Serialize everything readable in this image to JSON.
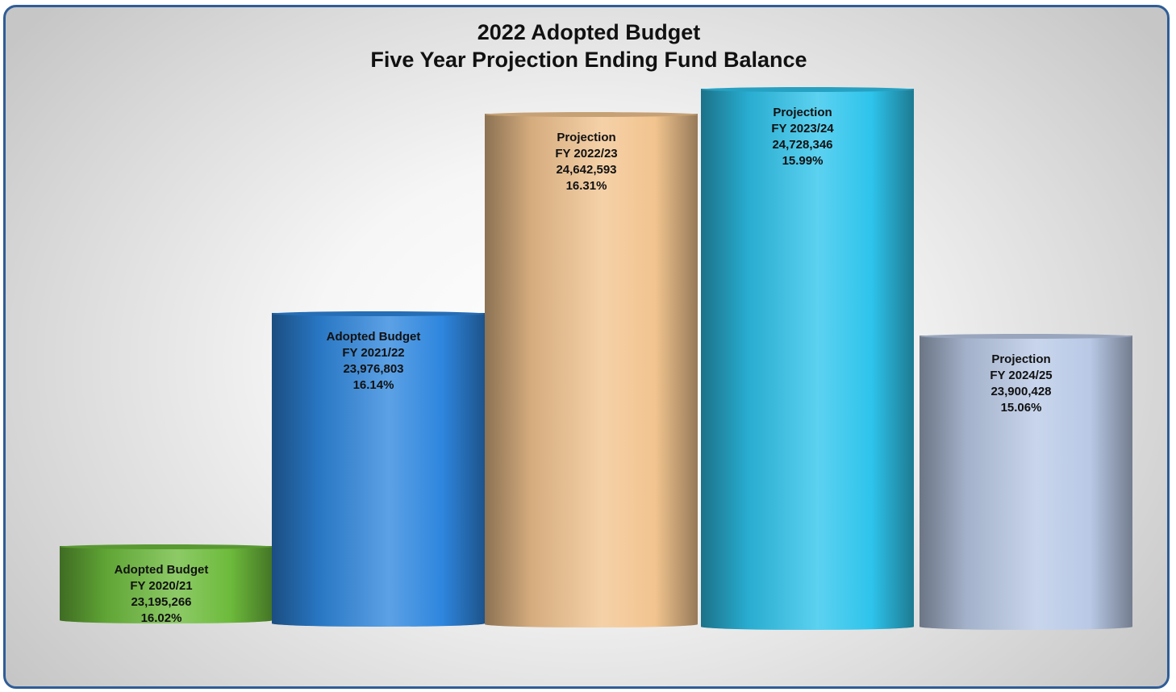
{
  "chart_data": {
    "type": "bar",
    "title": "2022 Adopted Budget",
    "subtitle": "Five Year Projection Ending Fund Balance",
    "categories": [
      "FY 2020/21",
      "FY 2021/22",
      "FY 2022/23",
      "FY 2023/24",
      "FY 2024/25"
    ],
    "values": [
      23195266,
      23976803,
      24642593,
      24728346,
      23900428
    ],
    "bars": [
      {
        "label": "Adopted Budget",
        "fy": "FY 2020/21",
        "amount": "23,195,266",
        "percent": "16.02%",
        "value": 23195266,
        "color": "#6dbb3c"
      },
      {
        "label": "Adopted Budget",
        "fy": "FY 2021/22",
        "amount": "23,976,803",
        "percent": "16.14%",
        "value": 23976803,
        "color": "#2e86de"
      },
      {
        "label": "Projection",
        "fy": "FY 2022/23",
        "amount": "24,642,593",
        "percent": "16.31%",
        "value": 24642593,
        "color": "#f2c48f"
      },
      {
        "label": "Projection",
        "fy": "FY 2023/24",
        "amount": "24,728,346",
        "percent": "15.99%",
        "value": 24728346,
        "color": "#2ec4ec"
      },
      {
        "label": "Projection",
        "fy": "FY 2024/25",
        "amount": "23,900,428",
        "percent": "15.06%",
        "value": 23900428,
        "color": "#b9c9e6"
      }
    ],
    "xlabel": "",
    "ylabel": "",
    "ylim": [
      22000000,
      25000000
    ],
    "grid": false,
    "legend": "none"
  }
}
